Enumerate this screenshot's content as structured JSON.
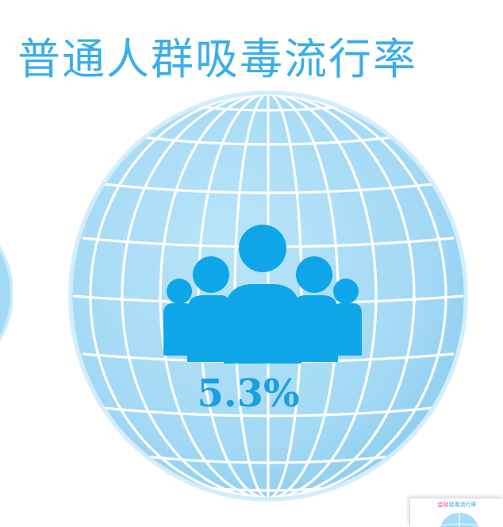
{
  "title": "普通人群吸毒流行率",
  "value": "5.3%",
  "thumbnail": {
    "title_lead": "监狱",
    "title_rest": "吸毒流行率"
  },
  "colors": {
    "title": "#3aaeea",
    "globe_fill": "#a8dcf6",
    "globe_edge": "#cbeafb",
    "grid": "#ffffff",
    "people_icon": "#0ea5e9",
    "value_text": "#1a9fe0"
  }
}
